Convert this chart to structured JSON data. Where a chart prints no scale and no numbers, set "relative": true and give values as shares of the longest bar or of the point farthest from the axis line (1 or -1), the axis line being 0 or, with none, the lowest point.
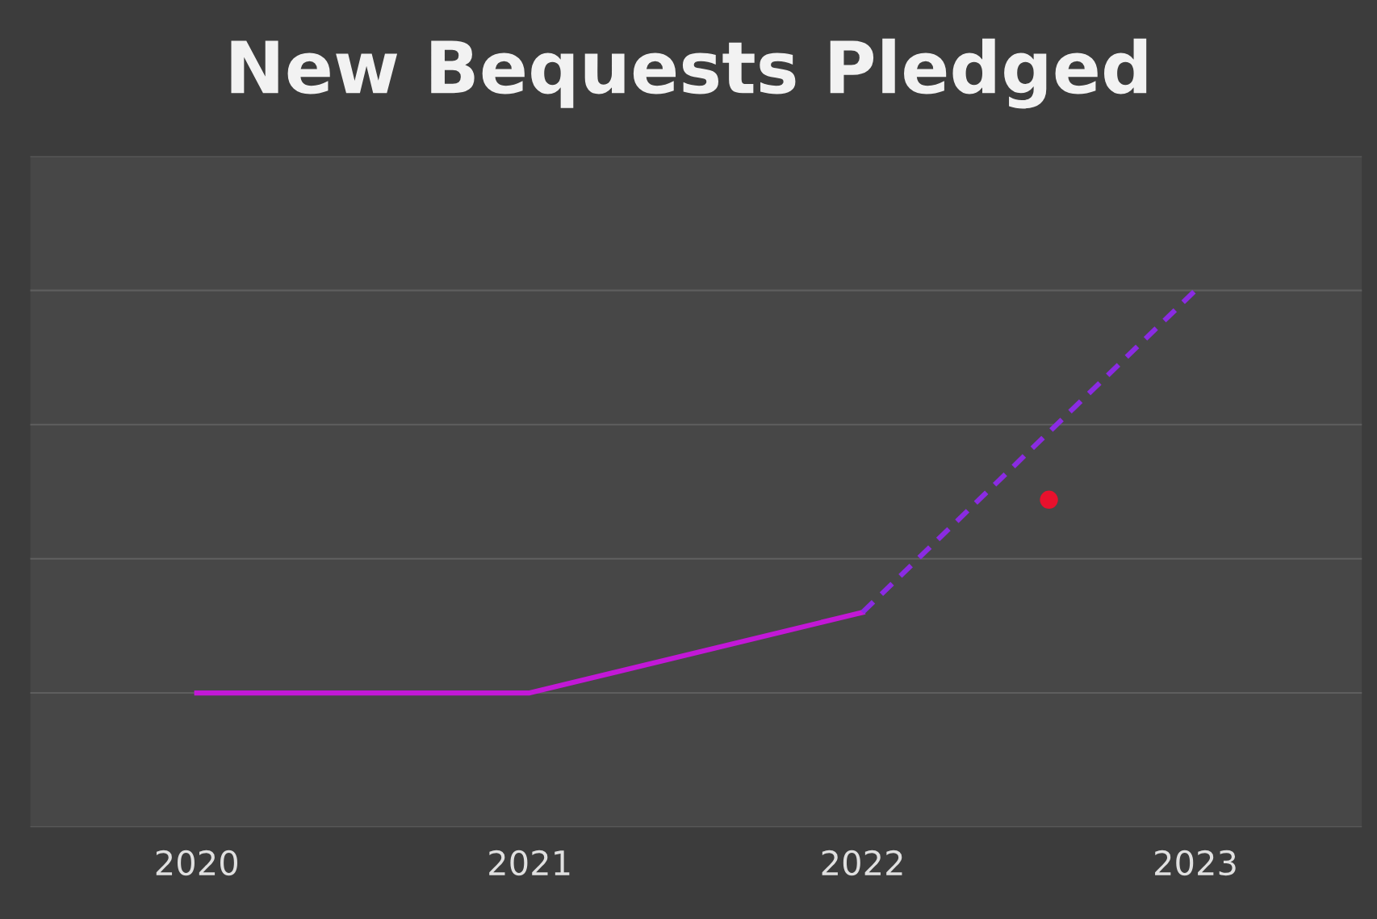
{
  "chart_data": {
    "type": "line",
    "title": "New Bequests Pledged",
    "relative": true,
    "xlim": [
      2019.5,
      2023.5
    ],
    "xticks": [
      2020,
      2021,
      2022,
      2023
    ],
    "tick_labels": "x",
    "grid": "y",
    "legend": false,
    "series": [
      {
        "color": "#c218d6",
        "line_style": "solid",
        "x": [
          2020,
          2021,
          2022
        ],
        "values": [
          0.25,
          0.25,
          0.4
        ]
      },
      {
        "color": "#8a2be2",
        "line_style": "dashed",
        "x": [
          2022,
          2023
        ],
        "values": [
          0.4,
          1.0
        ]
      },
      {
        "type": "scatter",
        "color": "#e8112d",
        "marker": "circle",
        "x": [
          2022.56
        ],
        "values": [
          0.61
        ]
      }
    ]
  }
}
